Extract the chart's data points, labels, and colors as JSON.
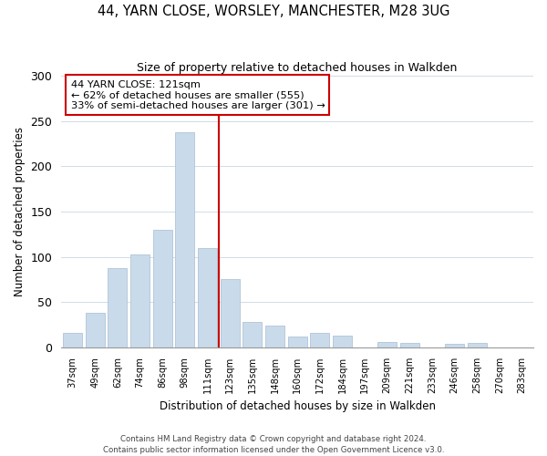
{
  "title": "44, YARN CLOSE, WORSLEY, MANCHESTER, M28 3UG",
  "subtitle": "Size of property relative to detached houses in Walkden",
  "xlabel": "Distribution of detached houses by size in Walkden",
  "ylabel": "Number of detached properties",
  "bar_labels": [
    "37sqm",
    "49sqm",
    "62sqm",
    "74sqm",
    "86sqm",
    "98sqm",
    "111sqm",
    "123sqm",
    "135sqm",
    "148sqm",
    "160sqm",
    "172sqm",
    "184sqm",
    "197sqm",
    "209sqm",
    "221sqm",
    "233sqm",
    "246sqm",
    "258sqm",
    "270sqm",
    "283sqm"
  ],
  "bar_values": [
    16,
    38,
    88,
    103,
    130,
    238,
    110,
    76,
    28,
    24,
    12,
    16,
    13,
    0,
    6,
    5,
    0,
    4,
    5,
    0,
    0
  ],
  "bar_color": "#c9daea",
  "bar_edge_color": "#b0c4d8",
  "vline_x_index": 6,
  "vline_color": "#cc0000",
  "annotation_title": "44 YARN CLOSE: 121sqm",
  "annotation_line1": "← 62% of detached houses are smaller (555)",
  "annotation_line2": "33% of semi-detached houses are larger (301) →",
  "annotation_box_color": "#ffffff",
  "annotation_box_edge": "#cc0000",
  "ylim": [
    0,
    300
  ],
  "yticks": [
    0,
    50,
    100,
    150,
    200,
    250,
    300
  ],
  "footer1": "Contains HM Land Registry data © Crown copyright and database right 2024.",
  "footer2": "Contains public sector information licensed under the Open Government Licence v3.0."
}
